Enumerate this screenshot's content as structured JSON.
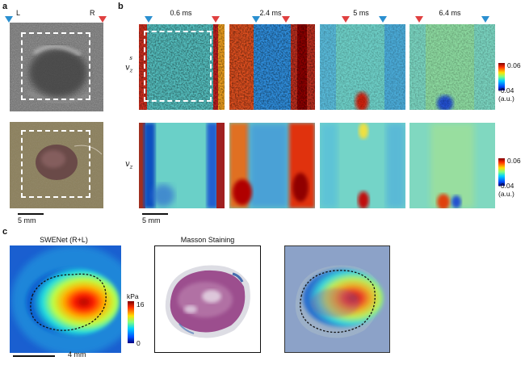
{
  "panels": {
    "a": {
      "letter": "a",
      "marker_left": "L",
      "marker_right": "R",
      "scalebar": "5 mm"
    },
    "b": {
      "letter": "b",
      "times": [
        "0.6 ms",
        "2.4 ms",
        "5 ms",
        "6.4 ms"
      ],
      "row1_label": {
        "base": "v",
        "sub": "z",
        "sup": "s"
      },
      "row2_label": {
        "base": "v",
        "sub": "z"
      },
      "colorbar": {
        "max": "0.06",
        "min": "-0.04",
        "unit": "(a.u.)"
      },
      "scalebar": "5 mm"
    },
    "c": {
      "letter": "c",
      "titles": [
        "SWENet (R+L)",
        "Masson Staining"
      ],
      "colorbar": {
        "unit": "kPa",
        "max": "16",
        "min": "0"
      },
      "scalebar": "4 mm"
    }
  },
  "colors": {
    "marker_blue": "#2a8fd0",
    "marker_red": "#e04040"
  }
}
